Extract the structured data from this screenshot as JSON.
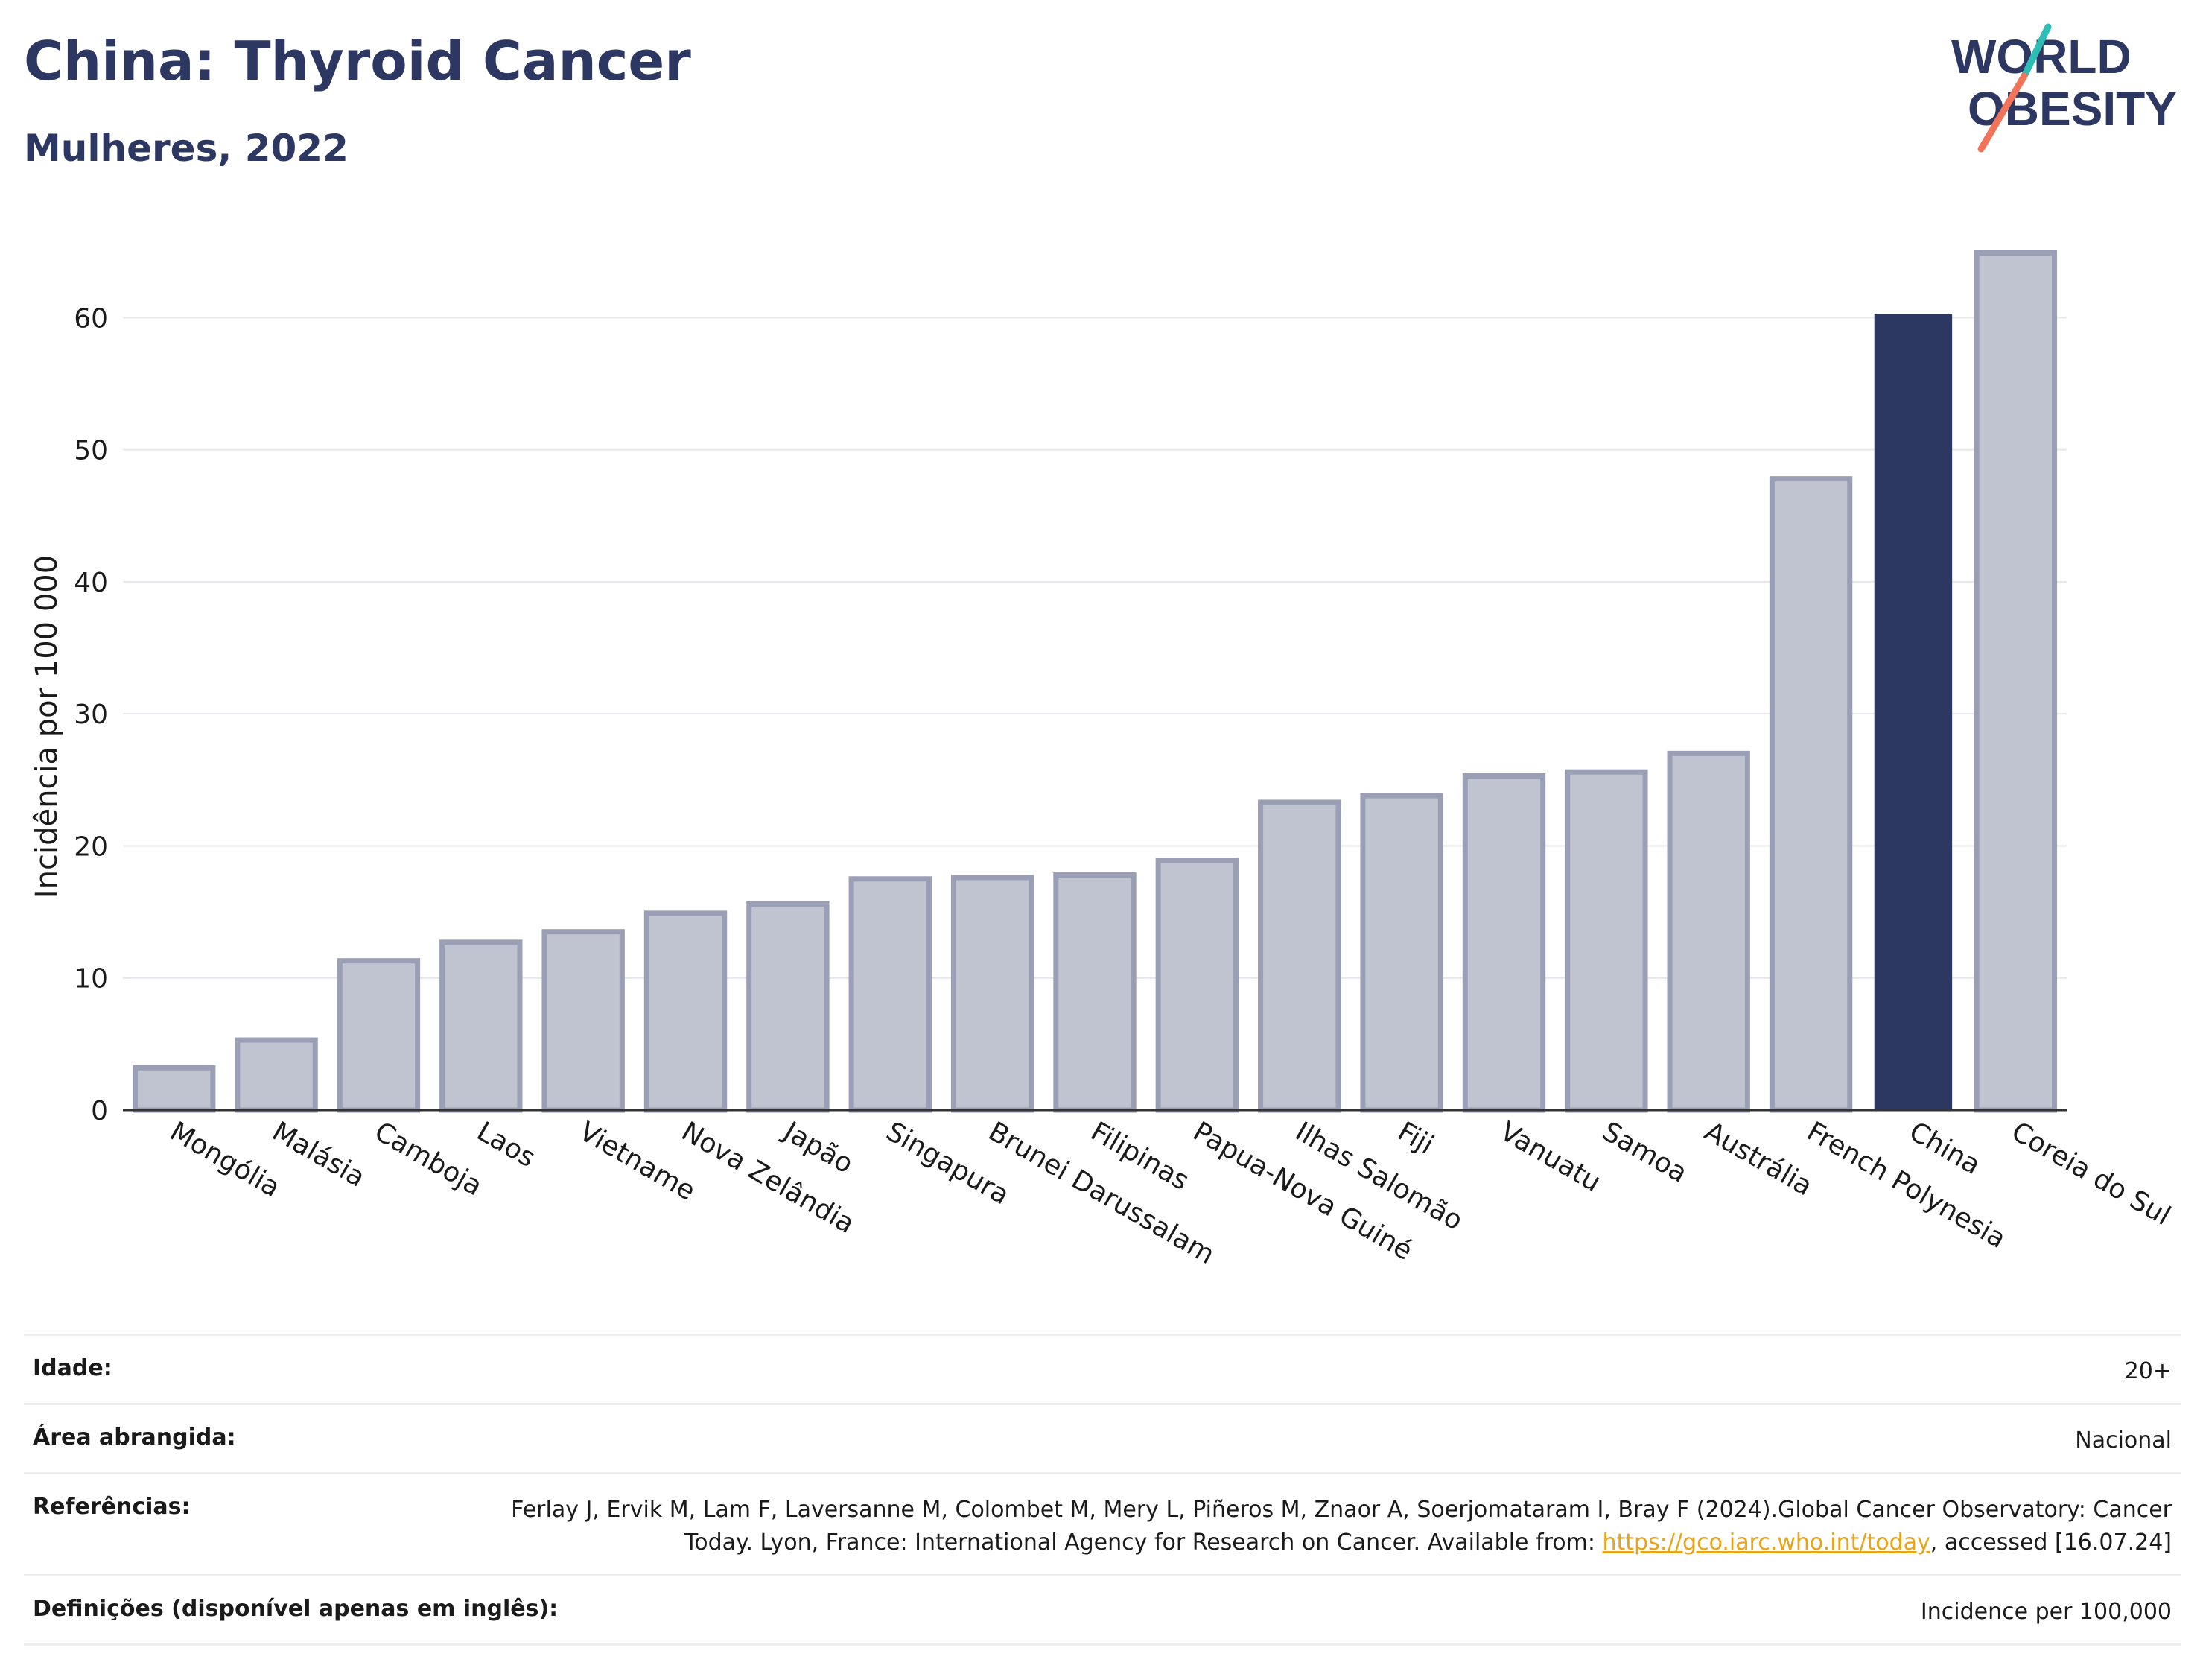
{
  "header": {
    "title": "China: Thyroid Cancer",
    "subtitle": "Mulheres, 2022",
    "logo_line1": "WORLD",
    "logo_line2": "OBESITY"
  },
  "colors": {
    "highlight_bar": "#2c3762",
    "other_bars_fill": "#c0c3d0",
    "other_bars_stroke": "#9a9fb5",
    "gridline": "#e6e6ec",
    "logo_teal": "#2ebdb5",
    "logo_coral": "#f0735a"
  },
  "chart_data": {
    "type": "bar",
    "title": "China: Thyroid Cancer",
    "subtitle": "Mulheres, 2022",
    "xlabel": "",
    "ylabel": "Incidência por 100 000",
    "ylim": [
      0,
      66
    ],
    "yticks": [
      0,
      10,
      20,
      30,
      40,
      50,
      60
    ],
    "grid": true,
    "highlight": "China",
    "categories": [
      "Mongólia",
      "Malásia",
      "Camboja",
      "Laos",
      "Vietname",
      "Nova Zelândia",
      "Japão",
      "Singapura",
      "Brunei Darussalam",
      "Filipinas",
      "Papua-Nova Guiné",
      "Ilhas Salomão",
      "Fiji",
      "Vanuatu",
      "Samoa",
      "Austrália",
      "French Polynesia",
      "China",
      "Coreia do Sul"
    ],
    "values": [
      3.2,
      5.3,
      11.3,
      12.7,
      13.5,
      14.9,
      15.6,
      17.5,
      17.6,
      17.8,
      18.9,
      23.3,
      23.8,
      25.3,
      25.6,
      27.0,
      47.8,
      60.3,
      64.9
    ]
  },
  "info": {
    "rows": [
      {
        "label": "Idade:",
        "value": "20+"
      },
      {
        "label": "Área abrangida:",
        "value": "Nacional"
      },
      {
        "label": "Referências:",
        "value_prefix": "Ferlay J, Ervik M, Lam F, Laversanne M, Colombet M, Mery L, Piñeros M, Znaor A, Soerjomataram I, Bray F (2024).Global Cancer Observatory: Cancer Today. Lyon, France: International Agency for Research on Cancer. Available from: ",
        "link": "https://gco.iarc.who.int/today",
        "value_suffix": ", accessed [16.07.24]"
      },
      {
        "label": "Definições (disponível apenas em inglês):",
        "value": "Incidence per 100,000"
      }
    ]
  }
}
